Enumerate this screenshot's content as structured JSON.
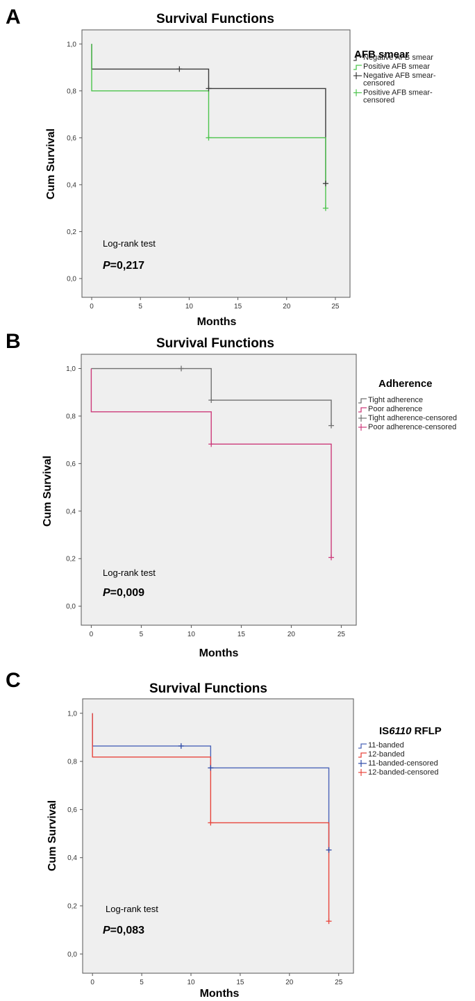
{
  "panels": [
    {
      "letter": "A",
      "note": "Log-rank test",
      "pvalue_symbol": "P",
      "pvalue_text": "=0,217",
      "legend": {
        "title_parts": [
          {
            "text": "AFB smear",
            "italic": false
          }
        ],
        "entries": [
          [
            "Negative AFB smear"
          ],
          [
            "Positive AFB smear"
          ],
          [
            "Negative AFB smear-",
            "censored"
          ],
          [
            "Positive AFB smear-",
            "censored"
          ]
        ]
      }
    },
    {
      "letter": "B",
      "note": "Log-rank test",
      "pvalue_symbol": "P",
      "pvalue_text": "=0,009",
      "legend": {
        "title_parts": [
          {
            "text": "Adherence",
            "italic": false
          }
        ],
        "entries": [
          [
            "Tight adherence"
          ],
          [
            "Poor adherence"
          ],
          [
            "Tight adherence-censored"
          ],
          [
            "Poor adherence-censored"
          ]
        ]
      }
    },
    {
      "letter": "C",
      "note": "Log-rank test",
      "pvalue_symbol": "P",
      "pvalue_text": "=0,083",
      "legend": {
        "title_parts": [
          {
            "text": "IS",
            "italic": false
          },
          {
            "text": "6110",
            "italic": true
          },
          {
            "text": " RFLP",
            "italic": false
          }
        ],
        "entries": [
          [
            "11-banded"
          ],
          [
            "12-banded"
          ],
          [
            "11-banded-censored"
          ],
          [
            "12-banded-censored"
          ]
        ]
      }
    }
  ],
  "chart_data": [
    {
      "type": "line",
      "step": true,
      "title": "Survival Functions",
      "xlabel": "Months",
      "ylabel": "Cum Survival",
      "xlim": [
        -1,
        26.5
      ],
      "ylim": [
        -0.08,
        1.06
      ],
      "xticks": [
        0,
        5,
        10,
        15,
        20,
        25
      ],
      "xtick_labels": [
        "0",
        "5",
        "10",
        "15",
        "20",
        "25"
      ],
      "yticks": [
        0,
        0.2,
        0.4,
        0.6,
        0.8,
        1.0
      ],
      "ytick_labels": [
        "0,0",
        "0,2",
        "0,4",
        "0,6",
        "0,8",
        "1,0"
      ],
      "series": [
        {
          "name": "Negative AFB smear",
          "color": "#3a3a3a",
          "x": [
            0,
            0,
            12,
            12,
            24,
            24
          ],
          "y": [
            1.0,
            0.893,
            0.893,
            0.81,
            0.81,
            0.405
          ]
        },
        {
          "name": "Positive AFB smear",
          "color": "#4cc44c",
          "x": [
            0,
            0,
            12,
            12,
            24,
            24
          ],
          "y": [
            1.0,
            0.8,
            0.8,
            0.6,
            0.6,
            0.3
          ]
        }
      ],
      "censored": [
        {
          "name": "Negative AFB smear-censored",
          "color": "#3a3a3a",
          "points": [
            [
              9,
              0.893
            ],
            [
              12,
              0.81
            ],
            [
              24,
              0.405
            ]
          ]
        },
        {
          "name": "Positive AFB smear-censored",
          "color": "#4cc44c",
          "points": [
            [
              12,
              0.6
            ],
            [
              24,
              0.3
            ]
          ]
        }
      ]
    },
    {
      "type": "line",
      "step": true,
      "title": "Survival Functions",
      "xlabel": "Months",
      "ylabel": "Cum Survival",
      "xlim": [
        -1,
        26.5
      ],
      "ylim": [
        -0.08,
        1.06
      ],
      "xticks": [
        0,
        5,
        10,
        15,
        20,
        25
      ],
      "xtick_labels": [
        "0",
        "5",
        "10",
        "15",
        "20",
        "25"
      ],
      "yticks": [
        0,
        0.2,
        0.4,
        0.6,
        0.8,
        1.0
      ],
      "ytick_labels": [
        "0,0",
        "0,2",
        "0,4",
        "0,6",
        "0,8",
        "1,0"
      ],
      "series": [
        {
          "name": "Tight adherence",
          "color": "#707070",
          "x": [
            0,
            12,
            12,
            24,
            24
          ],
          "y": [
            1.0,
            1.0,
            0.867,
            0.867,
            0.76
          ]
        },
        {
          "name": "Poor adherence",
          "color": "#cc3a7a",
          "x": [
            0,
            0,
            12,
            12,
            24,
            24
          ],
          "y": [
            1.0,
            0.818,
            0.818,
            0.682,
            0.682,
            0.205
          ]
        }
      ],
      "censored": [
        {
          "name": "Tight adherence-censored",
          "color": "#707070",
          "points": [
            [
              9,
              1.0
            ],
            [
              12,
              0.867
            ],
            [
              24,
              0.76
            ]
          ]
        },
        {
          "name": "Poor adherence-censored",
          "color": "#cc3a7a",
          "points": [
            [
              12,
              0.682
            ],
            [
              24,
              0.205
            ]
          ]
        }
      ]
    },
    {
      "type": "line",
      "step": true,
      "title": "Survival Functions",
      "xlabel": "Months",
      "ylabel": "Cum Survival",
      "xlim": [
        -1,
        26.5
      ],
      "ylim": [
        -0.08,
        1.06
      ],
      "xticks": [
        0,
        5,
        10,
        15,
        20,
        25
      ],
      "xtick_labels": [
        "0",
        "5",
        "10",
        "15",
        "20",
        "25"
      ],
      "yticks": [
        0,
        0.2,
        0.4,
        0.6,
        0.8,
        1.0
      ],
      "ytick_labels": [
        "0,0",
        "0,2",
        "0,4",
        "0,6",
        "0,8",
        "1,0"
      ],
      "series": [
        {
          "name": "11-banded",
          "color": "#4a63b8",
          "x": [
            0,
            0,
            12,
            12,
            24,
            24
          ],
          "y": [
            1.0,
            0.864,
            0.864,
            0.773,
            0.773,
            0.432
          ]
        },
        {
          "name": "12-banded",
          "color": "#e8453c",
          "x": [
            0,
            0,
            12,
            12,
            24,
            24
          ],
          "y": [
            1.0,
            0.818,
            0.818,
            0.545,
            0.545,
            0.136
          ]
        }
      ],
      "censored": [
        {
          "name": "11-banded-censored",
          "color": "#2d4aa8",
          "points": [
            [
              9,
              0.864
            ],
            [
              12,
              0.773
            ],
            [
              24,
              0.432
            ]
          ]
        },
        {
          "name": "12-banded-censored",
          "color": "#e8453c",
          "points": [
            [
              12,
              0.545
            ],
            [
              24,
              0.136
            ]
          ]
        }
      ]
    }
  ]
}
